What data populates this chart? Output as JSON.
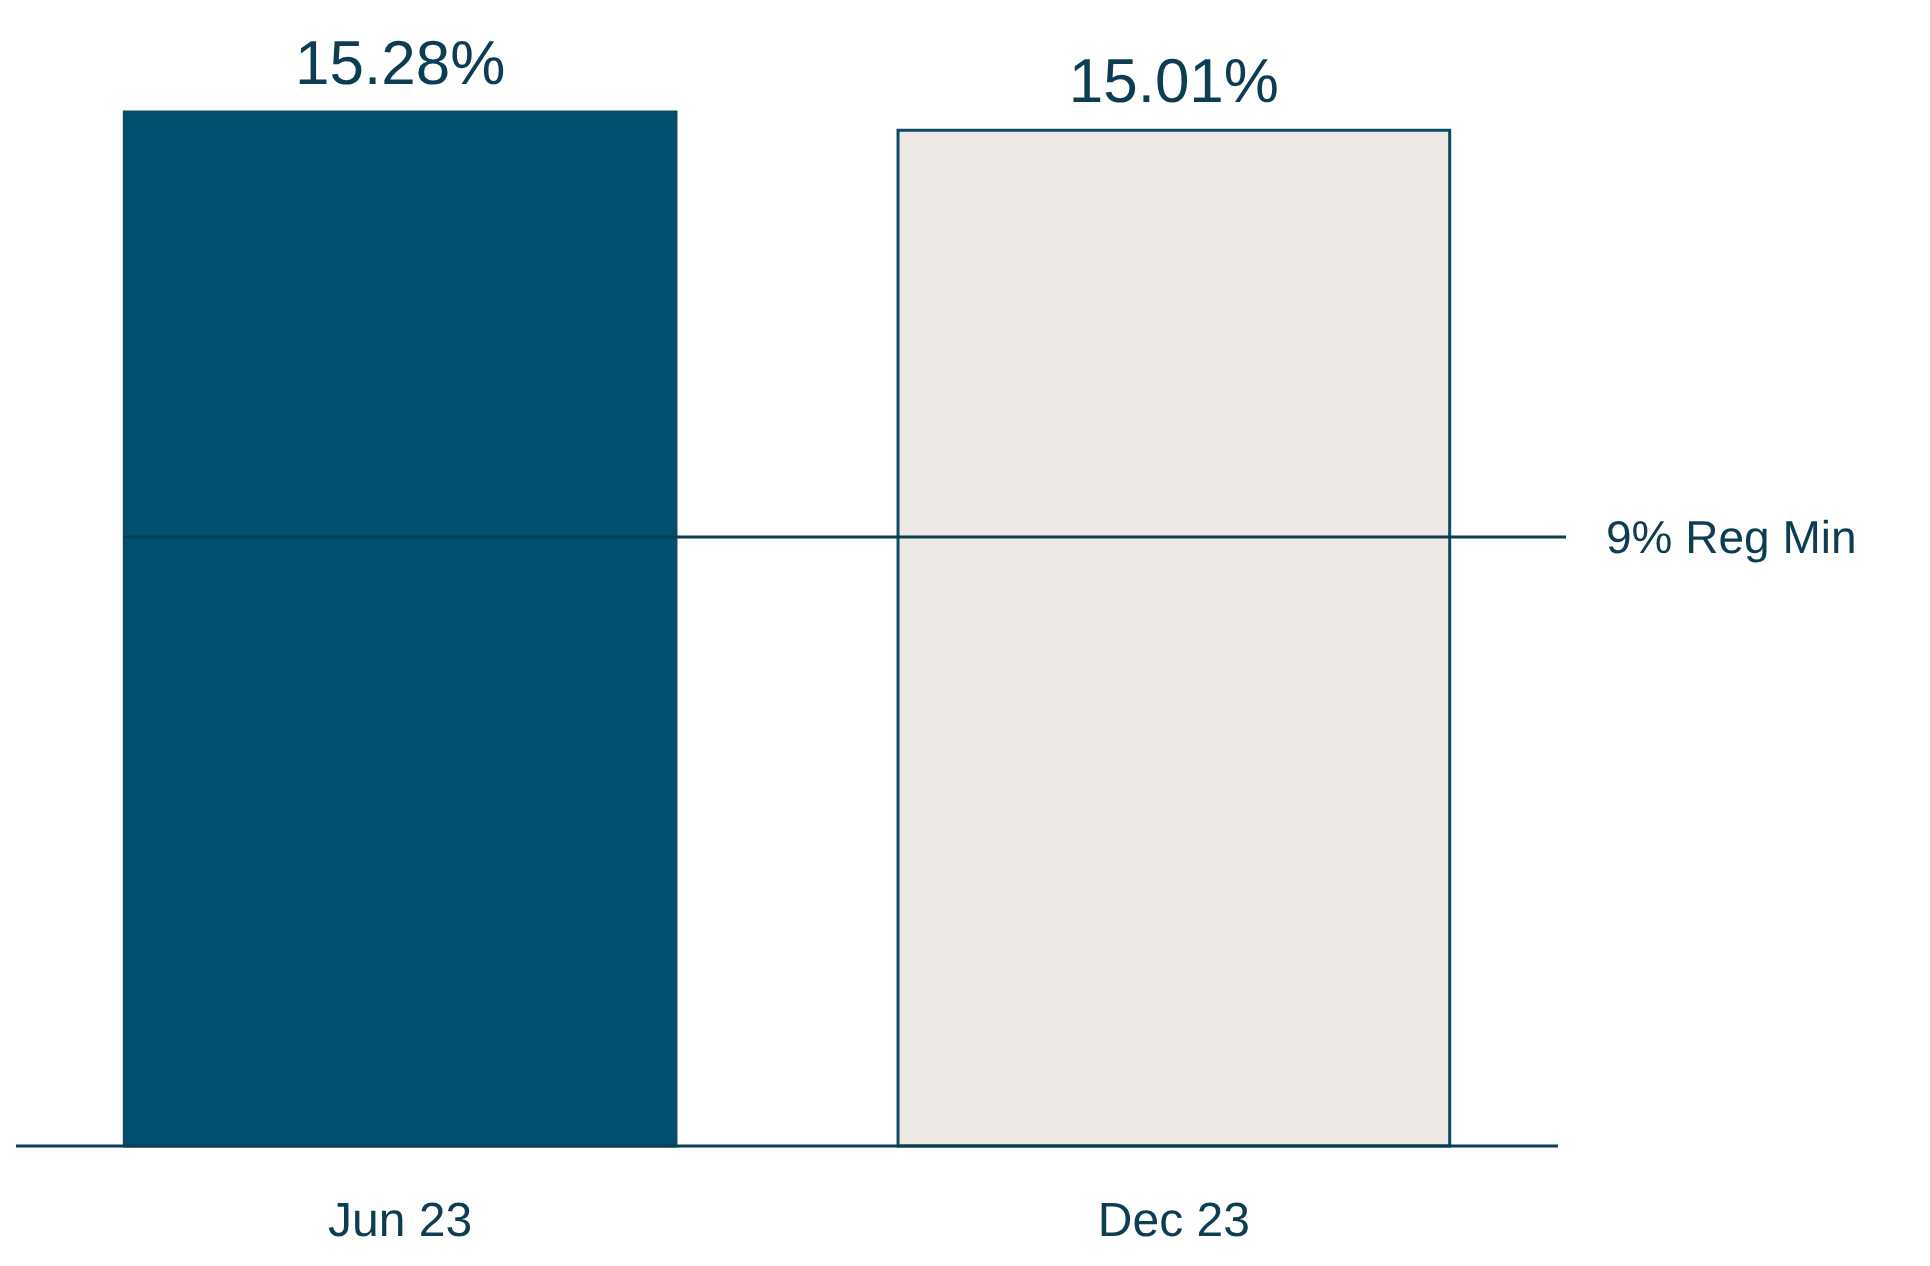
{
  "chart_data": {
    "type": "bar",
    "categories": [
      "Jun 23",
      "Dec 23"
    ],
    "values": [
      15.28,
      15.01
    ],
    "colors": [
      "#00516f",
      "#ede8e4"
    ],
    "value_labels": [
      "15.28%",
      "15.01%"
    ],
    "ylim": [
      0,
      15.28
    ],
    "tick_labels": "x",
    "ref_lines": [
      {
        "axis": "y",
        "value": 9,
        "label": "9% Reg Min",
        "color": "#0d3d52"
      }
    ]
  }
}
